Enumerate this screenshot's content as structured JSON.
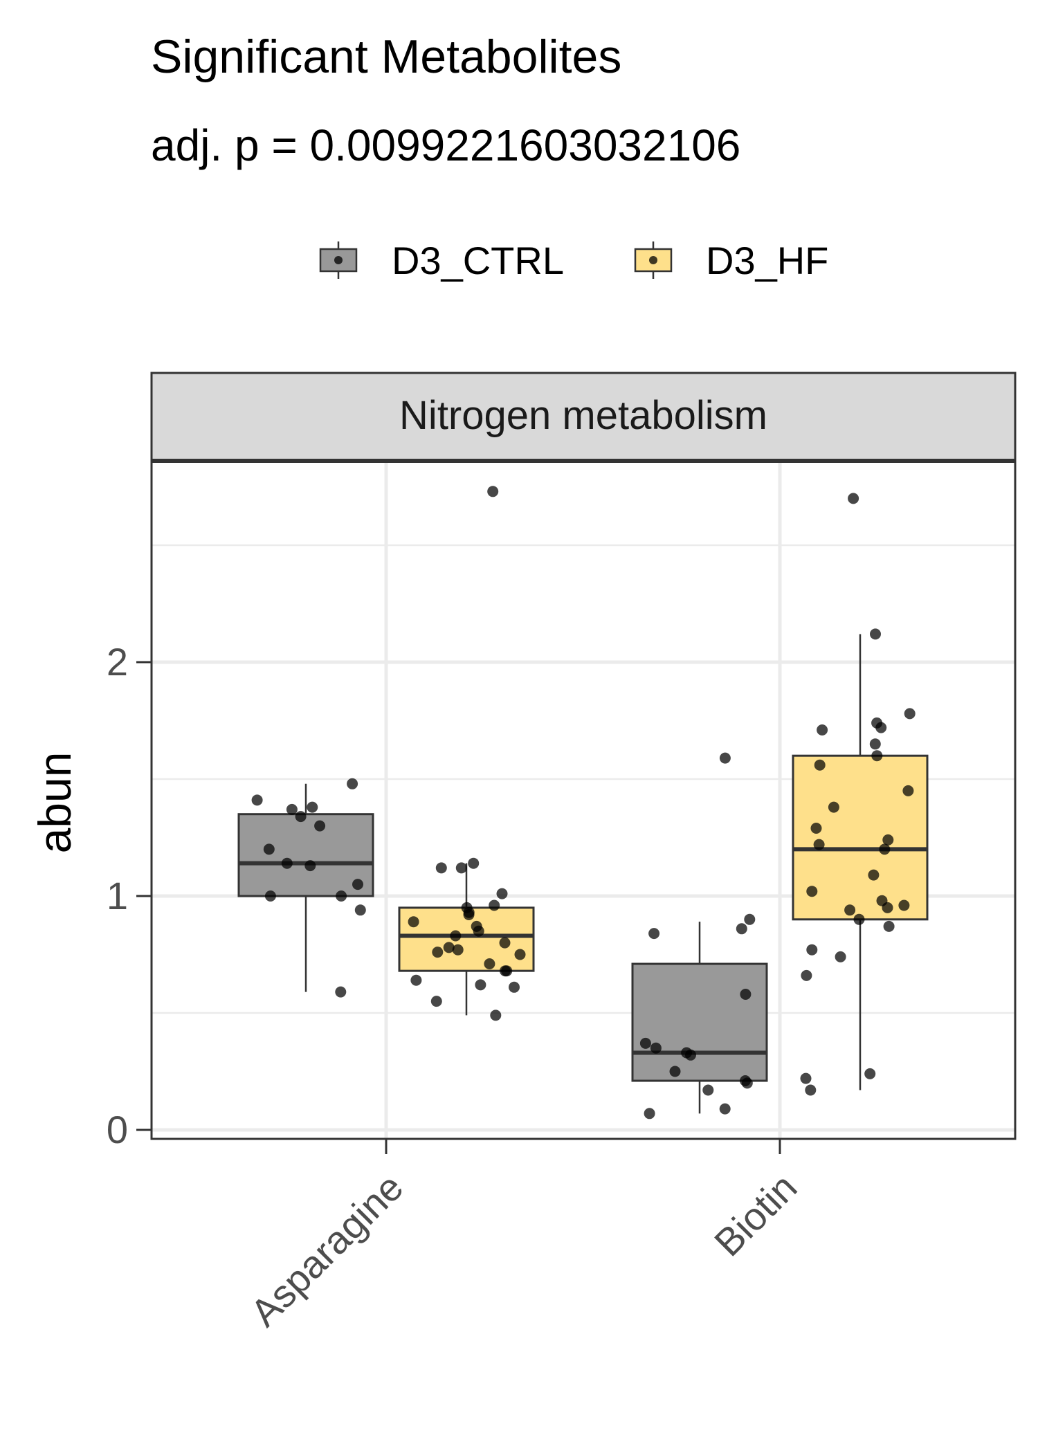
{
  "chart_data": {
    "type": "box",
    "title": "Significant Metabolites",
    "subtitle": "adj. p = 0.0099221603032106",
    "facet_label": "Nitrogen metabolism",
    "xlabel": "",
    "ylabel": "abun",
    "categories": [
      "Asparagine",
      "Biotin"
    ],
    "y_ticks": [
      0,
      1,
      2
    ],
    "ylim": [
      -0.04,
      2.86
    ],
    "grid": true,
    "legend_position": "top",
    "series": [
      {
        "name": "D3_CTRL",
        "color": "#999999",
        "boxes": [
          {
            "category": "Asparagine",
            "min": 0.59,
            "q1": 1.0,
            "median": 1.14,
            "q3": 1.35,
            "max": 1.48,
            "points": [
              1.48,
              1.41,
              1.38,
              1.37,
              1.34,
              1.3,
              1.2,
              1.14,
              1.13,
              1.05,
              1.0,
              1.0,
              0.94,
              0.59
            ]
          },
          {
            "category": "Biotin",
            "min": 0.07,
            "q1": 0.21,
            "median": 0.33,
            "q3": 0.71,
            "max": 0.89,
            "points": [
              1.59,
              0.9,
              0.86,
              0.84,
              0.58,
              0.37,
              0.35,
              0.33,
              0.32,
              0.25,
              0.21,
              0.2,
              0.17,
              0.09,
              0.07
            ]
          }
        ]
      },
      {
        "name": "D3_HF",
        "color": "#FEE08B",
        "boxes": [
          {
            "category": "Asparagine",
            "min": 0.49,
            "q1": 0.68,
            "median": 0.83,
            "q3": 0.95,
            "max": 1.14,
            "points": [
              2.73,
              1.14,
              1.12,
              1.12,
              1.01,
              0.96,
              0.95,
              0.93,
              0.92,
              0.89,
              0.87,
              0.85,
              0.83,
              0.8,
              0.78,
              0.77,
              0.76,
              0.75,
              0.71,
              0.68,
              0.68,
              0.64,
              0.62,
              0.61,
              0.55,
              0.49
            ]
          },
          {
            "category": "Biotin",
            "min": 0.17,
            "q1": 0.9,
            "median": 1.2,
            "q3": 1.6,
            "max": 2.12,
            "points": [
              2.7,
              2.12,
              1.78,
              1.74,
              1.72,
              1.71,
              1.65,
              1.6,
              1.56,
              1.45,
              1.38,
              1.29,
              1.24,
              1.22,
              1.2,
              1.09,
              1.02,
              0.98,
              0.96,
              0.95,
              0.94,
              0.9,
              0.87,
              0.77,
              0.74,
              0.66,
              0.24,
              0.22,
              0.17
            ]
          }
        ]
      }
    ]
  }
}
